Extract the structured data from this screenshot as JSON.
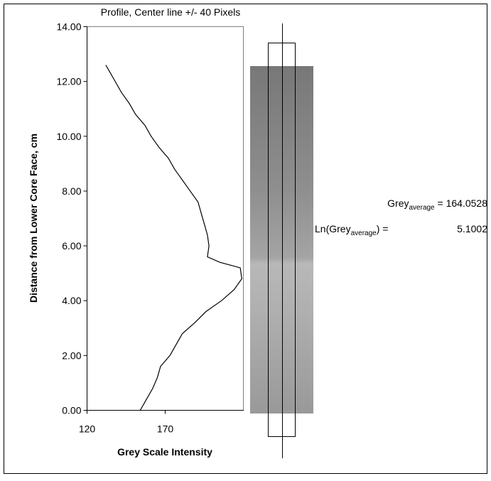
{
  "chart_data": {
    "type": "line",
    "title": "Profile, Center line +/- 40 Pixels",
    "x_label": "Grey Scale Intensity",
    "y_label": "Distance from Lower Core Face, cm",
    "x": [
      154,
      158,
      162,
      165,
      167,
      173,
      177,
      181,
      189,
      196,
      206,
      214,
      219,
      218,
      205,
      197,
      198,
      197,
      195,
      193,
      191,
      186,
      181,
      176,
      172,
      166,
      161,
      157,
      151,
      147,
      142,
      138,
      134,
      132
    ],
    "y": [
      0,
      0.4,
      0.8,
      1.2,
      1.6,
      2.0,
      2.4,
      2.8,
      3.2,
      3.6,
      4.0,
      4.4,
      4.8,
      5.2,
      5.4,
      5.6,
      6.0,
      6.4,
      6.8,
      7.2,
      7.6,
      8.0,
      8.4,
      8.8,
      9.2,
      9.6,
      10.0,
      10.4,
      10.8,
      11.2,
      11.6,
      12.0,
      12.4,
      12.6
    ],
    "color": "#000000",
    "xlim": [
      120,
      220
    ],
    "xticks": [
      120,
      170
    ],
    "ylim": [
      0,
      14
    ],
    "yticks": [
      {
        "value": 0,
        "label": "0.00"
      },
      {
        "value": 2,
        "label": "2.00"
      },
      {
        "value": 4,
        "label": "4.00"
      },
      {
        "value": 6,
        "label": "6.00"
      },
      {
        "value": 8,
        "label": "8.00"
      },
      {
        "value": 10,
        "label": "10.00"
      },
      {
        "value": 12,
        "label": "12.00"
      },
      {
        "value": 14,
        "label": "14.00"
      }
    ],
    "annotations": [
      {
        "base": "Grey",
        "subscript": "average",
        "rest": " = ",
        "value": "164.0528"
      },
      {
        "base": "Ln(Grey",
        "subscript": "average",
        "rest": ") =",
        "value": "5.1002"
      }
    ]
  }
}
